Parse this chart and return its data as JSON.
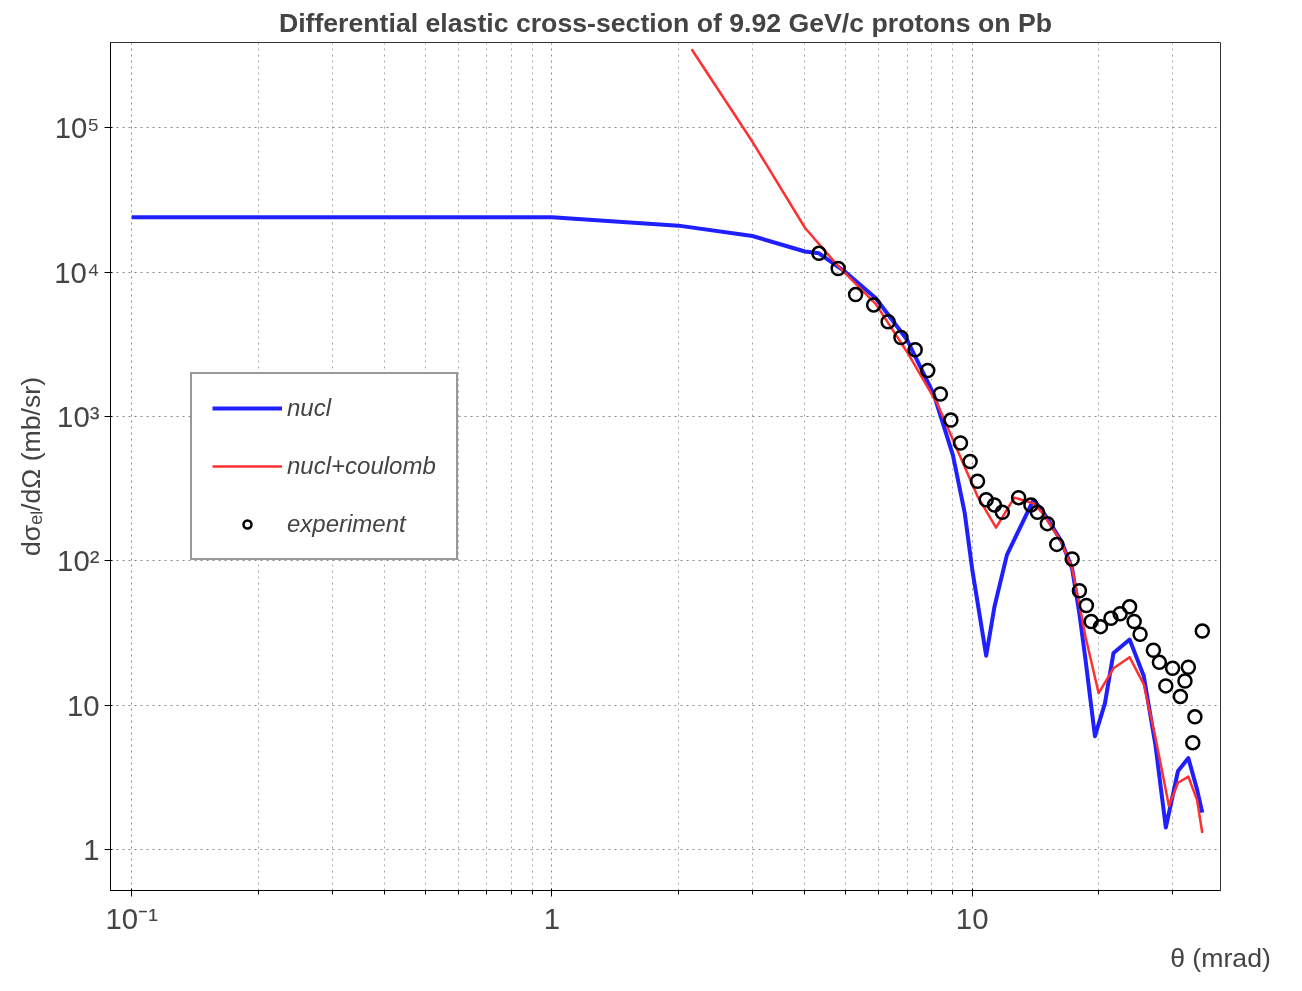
{
  "chart_data": {
    "type": "line",
    "title": "Differential elastic cross-section of 9.92 GeV/c protons on Pb",
    "xlabel": "θ (mrad)",
    "ylabel": "dσₑₗ/dΩ (mb/sr)",
    "log": "xy",
    "grid": true,
    "legend": "left",
    "xlim": [
      0.089,
      39
    ],
    "ylim": [
      0.52,
      390000
    ],
    "xticks": [
      {
        "value": 0.1,
        "label": "10⁻¹"
      },
      {
        "value": 0.2,
        "label": null
      },
      {
        "value": 0.3,
        "label": null
      },
      {
        "value": 0.4,
        "label": null
      },
      {
        "value": 0.5,
        "label": null
      },
      {
        "value": 0.6,
        "label": null
      },
      {
        "value": 0.7,
        "label": null
      },
      {
        "value": 0.8,
        "label": null
      },
      {
        "value": 0.9,
        "label": null
      },
      1,
      {
        "value": 2,
        "label": null
      },
      {
        "value": 3,
        "label": null
      },
      {
        "value": 4,
        "label": null
      },
      {
        "value": 5,
        "label": null
      },
      {
        "value": 6,
        "label": null
      },
      {
        "value": 7,
        "label": null
      },
      {
        "value": 8,
        "label": null
      },
      {
        "value": 9,
        "label": null
      },
      10,
      {
        "value": 20,
        "label": null
      },
      {
        "value": 30,
        "label": null
      }
    ],
    "yticks": [
      1,
      10,
      {
        "value": 100,
        "label": "10²"
      },
      {
        "value": 1000,
        "label": "10³"
      },
      {
        "value": 10000,
        "label": "10⁴"
      },
      {
        "value": 100000,
        "label": "10⁵"
      }
    ],
    "series": [
      {
        "name": "nucl",
        "color": "#2020ff",
        "x": [
          0.1,
          0.5,
          1,
          2,
          3,
          4,
          4.32,
          5,
          5.9,
          7,
          8.1,
          9,
          9.6,
          10,
          10.8,
          11.3,
          12.1,
          14,
          14.8,
          16.3,
          17.3,
          18,
          18.6,
          19.6,
          20.7,
          21.7,
          23.7,
          25.6,
          27.3,
          28.9,
          30.9,
          32.7,
          34.3,
          35.3
        ],
        "values": [
          24000,
          24000,
          24000,
          21000,
          17800,
          13900,
          13500,
          10000,
          6600,
          3400,
          1430,
          540,
          215,
          88,
          22,
          48,
          110,
          265,
          215,
          137,
          88,
          43,
          21,
          6.1,
          10.3,
          23,
          28.5,
          16,
          5.3,
          1.42,
          3.5,
          4.3,
          2.6,
          1.8
        ]
      },
      {
        "name": "nucl+coulomb",
        "color": "#ff3030",
        "x": [
          2.15,
          3,
          4,
          4.8,
          5.9,
          7,
          8.26,
          9.5,
          10.3,
          11.4,
          12.6,
          14,
          14.8,
          16.3,
          17.3,
          18,
          18.6,
          20,
          21.7,
          23.7,
          25.6,
          27.3,
          29.4,
          30.9,
          32.7,
          34.3,
          35.3
        ],
        "values": [
          350000,
          80000,
          20300,
          11000,
          6000,
          2800,
          1230,
          480,
          280,
          170,
          274,
          250,
          210,
          135,
          88,
          50,
          30,
          12.1,
          18,
          21.5,
          14,
          6,
          2.0,
          2.9,
          3.2,
          2.2,
          1.3
        ]
      },
      {
        "name": "experiment",
        "color": "#000000",
        "type": "scatter",
        "marker": "circle",
        "x": [
          4.32,
          4.8,
          5.28,
          5.83,
          6.31,
          6.77,
          7.32,
          7.84,
          8.4,
          8.9,
          9.38,
          9.89,
          10.3,
          10.8,
          11.3,
          11.8,
          12.9,
          13.8,
          14.3,
          15.1,
          15.9,
          17.3,
          18.0,
          18.7,
          19.2,
          20.2,
          21.4,
          22.5,
          23.7,
          24.3,
          25.1,
          27.0,
          27.9,
          28.9,
          30.0,
          31.3,
          32.1,
          32.7,
          33.5,
          33.9,
          35.3
        ],
        "values": [
          13500,
          10600,
          6990,
          5930,
          4530,
          3530,
          2900,
          2080,
          1430,
          944,
          656,
          488,
          356,
          265,
          244,
          217,
          274,
          244,
          217,
          181,
          130,
          103,
          62,
          49,
          38,
          35,
          40,
          43,
          48,
          38,
          31,
          24,
          19.8,
          13.6,
          18.0,
          11.5,
          14.7,
          18.3,
          5.5,
          8.3,
          32.6
        ]
      }
    ]
  }
}
